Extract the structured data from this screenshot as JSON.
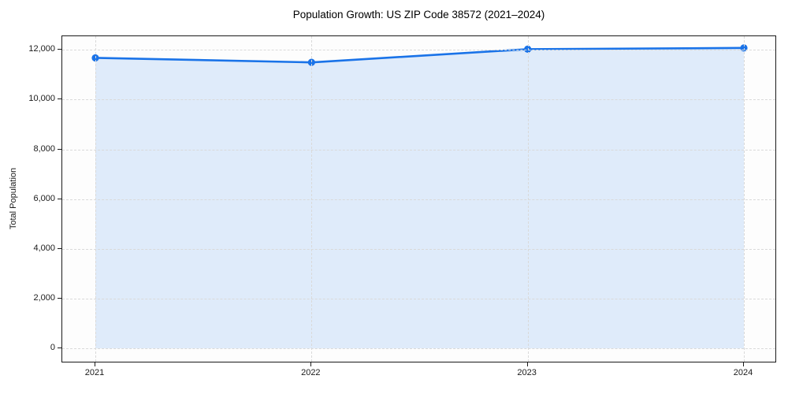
{
  "chart_data": {
    "type": "line",
    "title": "Population Growth: US ZIP Code 38572 (2021–2024)",
    "xlabel": "",
    "ylabel": "Total Population",
    "categories": [
      "2021",
      "2022",
      "2023",
      "2024"
    ],
    "series": [
      {
        "name": "Total Population",
        "values": [
          11680,
          11500,
          12030,
          12080
        ]
      }
    ],
    "ylim": [
      -600,
      12550
    ],
    "yticks": [
      0,
      2000,
      4000,
      6000,
      8000,
      10000,
      12000
    ],
    "ytick_labels": [
      "0",
      "2,000",
      "4,000",
      "6,000",
      "8,000",
      "10,000",
      "12,000"
    ],
    "x_edge_padding_fraction": 0.0463,
    "grid": true,
    "grid_style": "dashed",
    "legend": "none",
    "marker": "circle",
    "colors": {
      "line": "#1a73e8",
      "marker": "#1a73e8",
      "area_fill": "rgba(26,115,232,0.13)",
      "gridline": "#d9d9d9",
      "spine": "#1a1a1a",
      "text": "#1a1a1a"
    }
  }
}
